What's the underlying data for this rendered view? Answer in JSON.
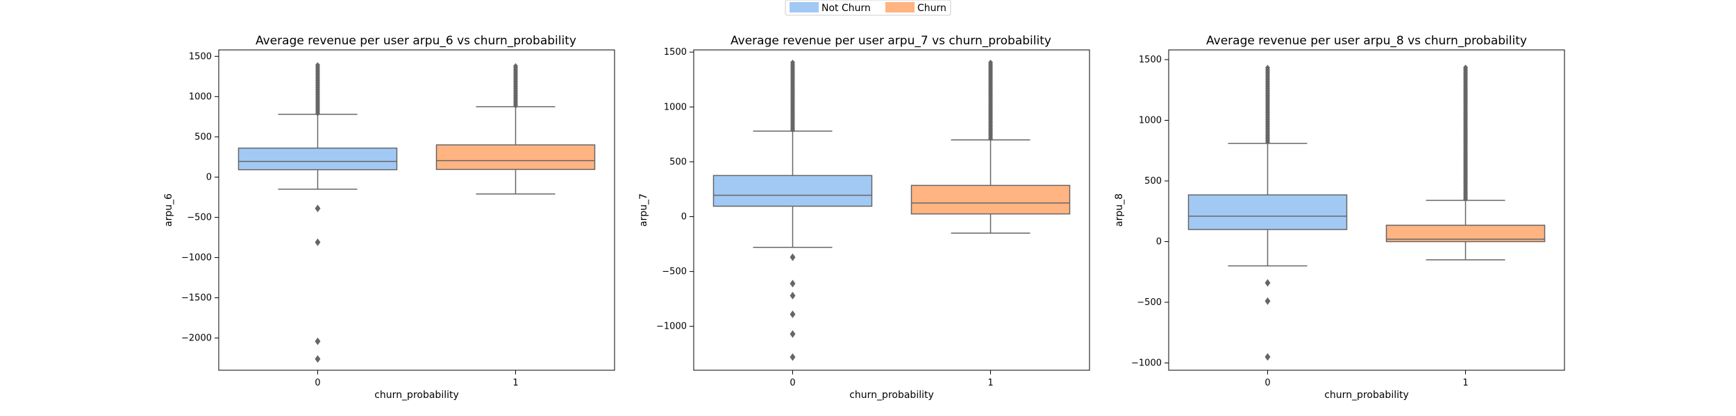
{
  "legend": {
    "items": [
      {
        "label": "Not Churn",
        "color": "#a1c9f4"
      },
      {
        "label": "Churn",
        "color": "#ffb482"
      }
    ]
  },
  "chart_data": [
    {
      "type": "box",
      "title": "Average revenue per user arpu_6 vs churn_probability",
      "xlabel": "churn_probability",
      "ylabel": "arpu_6",
      "categories": [
        "0",
        "1"
      ],
      "ylim": [
        -2400,
        1580
      ],
      "yticks": [
        1500,
        1000,
        500,
        0,
        -500,
        -1000,
        -1500,
        -2000
      ],
      "boxes": [
        {
          "category": "0",
          "color": "#a1c9f4",
          "whisker_low": -150,
          "q1": 92,
          "median": 195,
          "q3": 360,
          "whisker_high": 780,
          "outlier_range": [
            790,
            1400
          ],
          "outliers": [
            -390,
            -810,
            -2040,
            -2260
          ]
        },
        {
          "category": "1",
          "color": "#ffb482",
          "whisker_low": -210,
          "q1": 95,
          "median": 205,
          "q3": 400,
          "whisker_high": 875,
          "outlier_range": [
            885,
            1400
          ],
          "outliers": []
        }
      ]
    },
    {
      "type": "box",
      "title": "Average revenue per user arpu_7 vs churn_probability",
      "xlabel": "churn_probability",
      "ylabel": "arpu_7",
      "categories": [
        "0",
        "1"
      ],
      "ylim": [
        -1400,
        1520
      ],
      "yticks": [
        1500,
        1000,
        500,
        0,
        -500,
        -1000
      ],
      "boxes": [
        {
          "category": "0",
          "color": "#a1c9f4",
          "whisker_low": -280,
          "q1": 95,
          "median": 195,
          "q3": 375,
          "whisker_high": 780,
          "outlier_range": [
            790,
            1420
          ],
          "outliers": [
            -370,
            -610,
            -720,
            -890,
            -1070,
            -1280
          ]
        },
        {
          "category": "1",
          "color": "#ffb482",
          "whisker_low": -150,
          "q1": 25,
          "median": 125,
          "q3": 285,
          "whisker_high": 700,
          "outlier_range": [
            710,
            1420
          ],
          "outliers": []
        }
      ]
    },
    {
      "type": "box",
      "title": "Average revenue per user arpu_8 vs churn_probability",
      "xlabel": "churn_probability",
      "ylabel": "arpu_8",
      "categories": [
        "0",
        "1"
      ],
      "ylim": [
        -1060,
        1580
      ],
      "yticks": [
        1500,
        1000,
        500,
        0,
        -500,
        -1000
      ],
      "boxes": [
        {
          "category": "0",
          "color": "#a1c9f4",
          "whisker_low": -200,
          "q1": 100,
          "median": 210,
          "q3": 385,
          "whisker_high": 810,
          "outlier_range": [
            820,
            1440
          ],
          "outliers": [
            -340,
            -490,
            -950
          ]
        },
        {
          "category": "1",
          "color": "#ffb482",
          "whisker_low": -150,
          "q1": 0,
          "median": 20,
          "q3": 135,
          "whisker_high": 340,
          "outlier_range": [
            350,
            1440
          ],
          "outliers": []
        }
      ]
    }
  ]
}
